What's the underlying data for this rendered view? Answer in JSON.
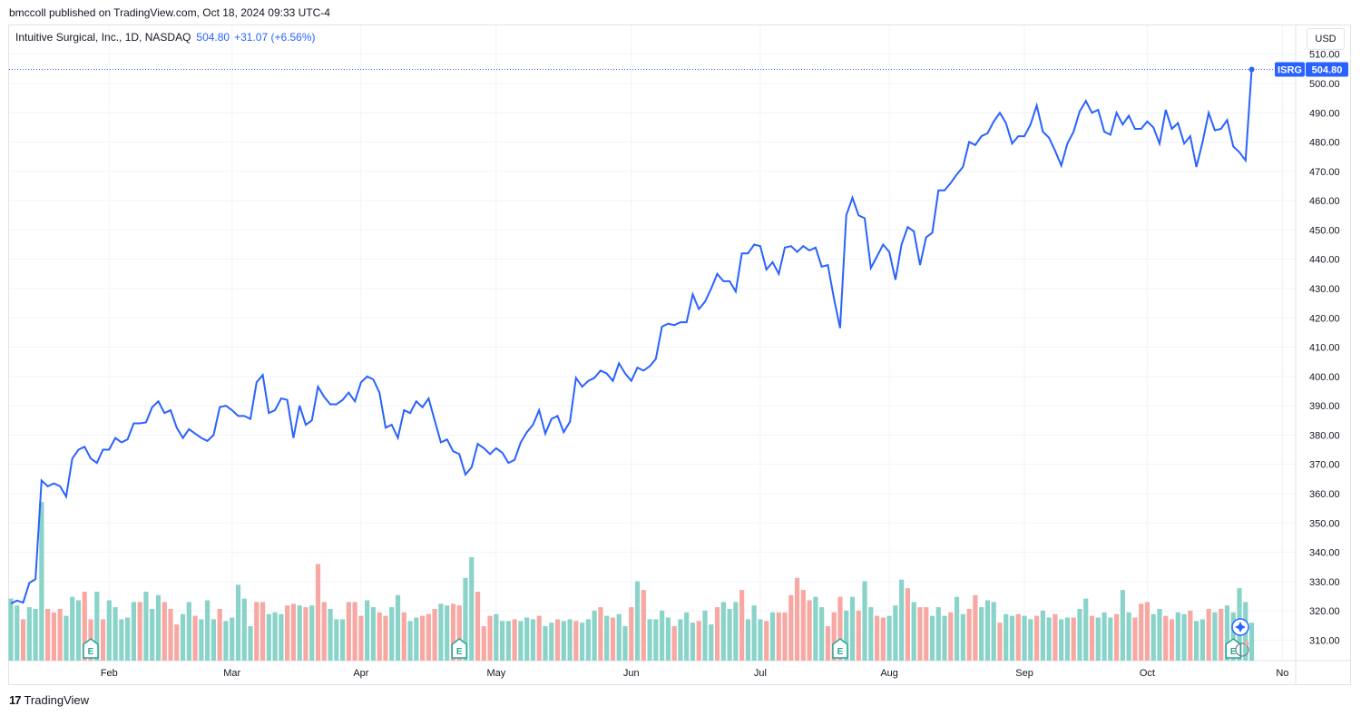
{
  "header": {
    "published": "bmccoll published on TradingView.com, Oct 18, 2024 09:33 UTC-4"
  },
  "legend": {
    "symbol": "Intuitive Surgical, Inc., 1D, NASDAQ",
    "last": "504.80",
    "change": "+31.07 (+6.56%)"
  },
  "currency_button": "USD",
  "footer": {
    "logo_icon": "tradingview-logo-icon",
    "brand": "TradingView"
  },
  "colors": {
    "line": "#2962ff",
    "vol_up": "#89d3c9",
    "vol_down": "#f7a8a3",
    "grid": "#f0f3fa",
    "earnings": "#26a69a"
  },
  "chart_data": {
    "type": "line",
    "series": [
      {
        "name": "ISRG",
        "values": [
          322.5,
          323.5,
          322.8,
          329.5,
          330.8,
          364.5,
          362.5,
          363.5,
          362.5,
          359,
          372,
          375,
          376,
          372,
          370.5,
          375,
          375,
          379,
          377.5,
          378.5,
          384,
          384,
          384.3,
          389.5,
          391.5,
          387.5,
          388.5,
          382.5,
          379,
          382,
          380.5,
          379,
          378,
          380,
          389.5,
          390,
          388.5,
          386.5,
          386.5,
          385.5,
          398,
          400.5,
          387.5,
          388.5,
          392.5,
          392,
          379,
          390,
          383.5,
          385,
          396.5,
          393,
          390.5,
          390.5,
          392,
          394.5,
          391.5,
          398,
          400,
          399,
          394.5,
          382.5,
          383.5,
          379,
          388.5,
          387.5,
          391.5,
          389.5,
          392.5,
          385,
          377.5,
          378.5,
          374.5,
          373.5,
          366.5,
          369,
          377,
          375.5,
          373.5,
          375.5,
          374,
          370.5,
          371.5,
          377.5,
          381,
          383.5,
          388.5,
          380.5,
          385.5,
          386.5,
          381,
          384.5,
          399.5,
          396.5,
          398.5,
          399.5,
          402,
          401,
          398.5,
          404.5,
          401,
          398.5,
          403,
          402,
          403.5,
          406,
          417,
          418,
          417.5,
          418.5,
          418.5,
          428,
          423,
          425.5,
          430,
          435,
          432.5,
          432.5,
          429,
          442,
          442,
          445,
          444.5,
          436.5,
          439,
          435,
          444,
          444.5,
          442.5,
          444.5,
          443,
          444,
          437.5,
          438,
          426.5,
          416.5,
          455,
          461,
          455,
          454,
          437,
          441,
          445,
          442.5,
          433,
          445,
          451,
          449.5,
          438,
          447.5,
          449,
          463.5,
          463.5,
          466,
          469,
          471.5,
          480,
          479,
          482,
          483,
          487,
          490,
          486.5,
          479.5,
          482,
          482,
          486,
          492.5,
          483.5,
          481.5,
          477,
          472,
          479.5,
          483.5,
          490.5,
          494,
          490,
          491,
          483.5,
          482.5,
          490,
          486,
          489,
          484.5,
          484.5,
          487,
          485,
          479.5,
          491,
          484.5,
          486.5,
          479.5,
          482,
          471.5,
          480,
          490,
          484,
          484.5,
          487.5,
          478.5,
          476.5,
          473.73,
          504.8
        ]
      }
    ],
    "volume_rel": [
      0.36,
      0.32,
      0.24,
      0.31,
      0.3,
      0.92,
      0.3,
      0.28,
      0.3,
      0.26,
      0.37,
      0.35,
      0.4,
      0.24,
      0.4,
      0.24,
      0.35,
      0.31,
      0.24,
      0.25,
      0.34,
      0.34,
      0.4,
      0.3,
      0.38,
      0.34,
      0.3,
      0.21,
      0.27,
      0.34,
      0.26,
      0.24,
      0.35,
      0.24,
      0.3,
      0.23,
      0.25,
      0.44,
      0.36,
      0.2,
      0.34,
      0.34,
      0.27,
      0.28,
      0.27,
      0.32,
      0.33,
      0.32,
      0.31,
      0.32,
      0.56,
      0.34,
      0.3,
      0.24,
      0.24,
      0.34,
      0.34,
      0.26,
      0.35,
      0.31,
      0.28,
      0.26,
      0.31,
      0.38,
      0.28,
      0.23,
      0.25,
      0.26,
      0.27,
      0.3,
      0.33,
      0.32,
      0.33,
      0.32,
      0.48,
      0.6,
      0.4,
      0.2,
      0.26,
      0.27,
      0.23,
      0.23,
      0.24,
      0.23,
      0.25,
      0.24,
      0.26,
      0.2,
      0.22,
      0.24,
      0.23,
      0.24,
      0.23,
      0.22,
      0.24,
      0.29,
      0.31,
      0.26,
      0.25,
      0.27,
      0.2,
      0.31,
      0.46,
      0.41,
      0.24,
      0.24,
      0.29,
      0.25,
      0.2,
      0.24,
      0.28,
      0.22,
      0.23,
      0.29,
      0.21,
      0.31,
      0.34,
      0.3,
      0.34,
      0.41,
      0.24,
      0.32,
      0.24,
      0.23,
      0.28,
      0.28,
      0.28,
      0.38,
      0.48,
      0.41,
      0.35,
      0.37,
      0.31,
      0.2,
      0.28,
      0.37,
      0.29,
      0.37,
      0.29,
      0.46,
      0.31,
      0.26,
      0.25,
      0.26,
      0.32,
      0.47,
      0.42,
      0.34,
      0.31,
      0.31,
      0.26,
      0.31,
      0.26,
      0.28,
      0.37,
      0.27,
      0.3,
      0.38,
      0.31,
      0.35,
      0.34,
      0.22,
      0.27,
      0.26,
      0.27,
      0.26,
      0.24,
      0.26,
      0.29,
      0.25,
      0.27,
      0.24,
      0.25,
      0.25,
      0.3,
      0.36,
      0.26,
      0.25,
      0.28,
      0.25,
      0.27,
      0.41,
      0.28,
      0.25,
      0.33,
      0.34,
      0.27,
      0.3,
      0.26,
      0.24,
      0.28,
      0.27,
      0.29,
      0.23,
      0.24,
      0.3,
      0.28,
      0.3,
      0.32,
      0.28,
      0.42,
      0.34,
      0.22
    ],
    "volume_dir": [
      "u",
      "u",
      "d",
      "u",
      "u",
      "u",
      "d",
      "d",
      "d",
      "u",
      "u",
      "u",
      "d",
      "d",
      "u",
      "d",
      "u",
      "u",
      "u",
      "u",
      "u",
      "d",
      "u",
      "u",
      "u",
      "d",
      "d",
      "d",
      "u",
      "u",
      "d",
      "u",
      "u",
      "u",
      "d",
      "u",
      "u",
      "u",
      "u",
      "u",
      "d",
      "d",
      "u",
      "u",
      "u",
      "d",
      "d",
      "u",
      "d",
      "u",
      "d",
      "d",
      "u",
      "u",
      "u",
      "d",
      "d",
      "d",
      "u",
      "u",
      "d",
      "d",
      "u",
      "u",
      "d",
      "u",
      "u",
      "d",
      "d",
      "d",
      "u",
      "u",
      "d",
      "d",
      "u",
      "u",
      "d",
      "d",
      "d",
      "u",
      "u",
      "u",
      "d",
      "u",
      "u",
      "u",
      "d",
      "u",
      "u",
      "d",
      "u",
      "u",
      "d",
      "u",
      "u",
      "u",
      "d",
      "u",
      "d",
      "u",
      "u",
      "d",
      "u",
      "d",
      "u",
      "u",
      "u",
      "u",
      "d",
      "u",
      "u",
      "u",
      "d",
      "u",
      "u",
      "d",
      "u",
      "u",
      "u",
      "d",
      "u",
      "u",
      "u",
      "d",
      "u",
      "d",
      "d",
      "d",
      "d",
      "d",
      "d",
      "u",
      "u",
      "d",
      "d",
      "d",
      "u",
      "u",
      "d",
      "u",
      "u",
      "d",
      "d",
      "u",
      "u",
      "u",
      "d",
      "u",
      "d",
      "d",
      "u",
      "u",
      "u",
      "d",
      "u",
      "u",
      "d",
      "d",
      "u",
      "u",
      "u",
      "d",
      "u",
      "u",
      "d",
      "u",
      "u",
      "d",
      "u",
      "u",
      "d",
      "u",
      "u",
      "d",
      "u",
      "u",
      "d",
      "u",
      "u",
      "u",
      "d",
      "u",
      "u",
      "d",
      "d",
      "d",
      "u",
      "u",
      "d",
      "d",
      "u",
      "u",
      "d",
      "u",
      "u",
      "d",
      "u",
      "d"
    ],
    "x_month_labels": [
      "Feb",
      "Mar",
      "Apr",
      "May",
      "Jun",
      "Jul",
      "Aug",
      "Sep",
      "Oct",
      "No"
    ],
    "y_ticks": [
      310,
      320,
      330,
      340,
      350,
      360,
      370,
      380,
      390,
      400,
      410,
      420,
      430,
      440,
      450,
      460,
      470,
      480,
      490,
      500,
      510
    ],
    "ylim": [
      303,
      513
    ],
    "last_label": {
      "symbol": "ISRG",
      "price": "504.80"
    },
    "earnings_markers": [
      "E",
      "E",
      "E",
      "E"
    ]
  }
}
